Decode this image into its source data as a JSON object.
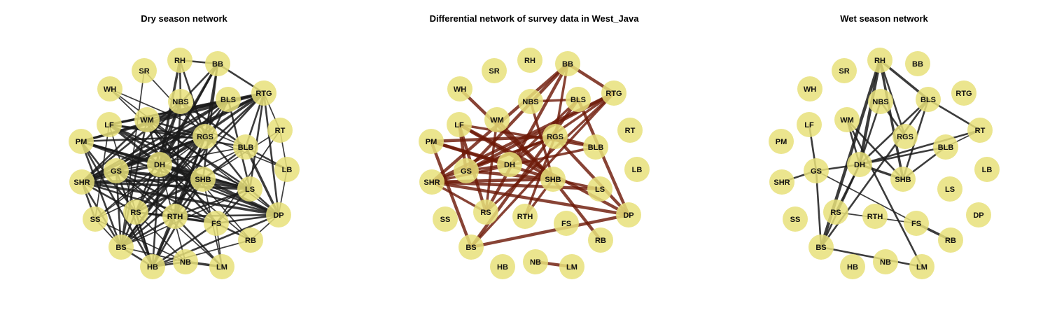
{
  "panels": [
    {
      "title": "Dry season network",
      "edge_color": "#1a1a1a",
      "edge_opacity": 0.85,
      "edges": [
        [
          "RH",
          "BB",
          2
        ],
        [
          "RH",
          "NBS",
          2
        ],
        [
          "RH",
          "DH",
          3
        ],
        [
          "RH",
          "RGS",
          2
        ],
        [
          "BB",
          "RTG",
          2
        ],
        [
          "BB",
          "DH",
          3
        ],
        [
          "BB",
          "RS",
          2
        ],
        [
          "BB",
          "SHB",
          2
        ],
        [
          "BB",
          "GS",
          2
        ],
        [
          "BB",
          "RGS",
          2
        ],
        [
          "WH",
          "SHB",
          1
        ],
        [
          "WH",
          "DP",
          1
        ],
        [
          "SR",
          "RGS",
          1
        ],
        [
          "RTG",
          "LF",
          3
        ],
        [
          "RTG",
          "PM",
          3
        ],
        [
          "RTG",
          "GS",
          3
        ],
        [
          "RTG",
          "SHR",
          3
        ],
        [
          "RTG",
          "DH",
          3
        ],
        [
          "RTG",
          "BLB",
          2
        ],
        [
          "RTG",
          "RT",
          1
        ],
        [
          "RTG",
          "LS",
          2
        ],
        [
          "RTG",
          "RS",
          2
        ],
        [
          "RTG",
          "BS",
          2
        ],
        [
          "RTG",
          "DP",
          2
        ],
        [
          "RTG",
          "WM",
          2
        ],
        [
          "NBS",
          "SHR",
          2
        ],
        [
          "NBS",
          "DH",
          2
        ],
        [
          "NBS",
          "RTH",
          2
        ],
        [
          "NBS",
          "RS",
          2
        ],
        [
          "NBS",
          "LS",
          2
        ],
        [
          "NBS",
          "BLB",
          2
        ],
        [
          "BLS",
          "LF",
          2
        ],
        [
          "BLS",
          "PM",
          2
        ],
        [
          "BLS",
          "GS",
          2
        ],
        [
          "BLS",
          "SHR",
          2
        ],
        [
          "BLS",
          "LS",
          2
        ],
        [
          "BLS",
          "DH",
          2
        ],
        [
          "BLS",
          "BS",
          2
        ],
        [
          "BLS",
          "RTH",
          2
        ],
        [
          "LF",
          "SHB",
          3
        ],
        [
          "LF",
          "DH",
          3
        ],
        [
          "LF",
          "RGS",
          2
        ],
        [
          "LF",
          "LS",
          2
        ],
        [
          "LF",
          "BLB",
          2
        ],
        [
          "LF",
          "SS",
          1
        ],
        [
          "LF",
          "HB",
          1
        ],
        [
          "WM",
          "LS",
          2
        ],
        [
          "WM",
          "DH",
          2
        ],
        [
          "WM",
          "RGS",
          2
        ],
        [
          "WM",
          "SHR",
          2
        ],
        [
          "WM",
          "RB",
          1
        ],
        [
          "WM",
          "FS",
          2
        ],
        [
          "WM",
          "BS",
          2
        ],
        [
          "PM",
          "RGS",
          2
        ],
        [
          "PM",
          "SHB",
          2
        ],
        [
          "PM",
          "LS",
          2
        ],
        [
          "PM",
          "DP",
          2
        ],
        [
          "PM",
          "HB",
          2
        ],
        [
          "PM",
          "RS",
          2
        ],
        [
          "PM",
          "BS",
          2
        ],
        [
          "PM",
          "DH",
          2
        ],
        [
          "RGS",
          "GS",
          3
        ],
        [
          "RGS",
          "SHR",
          3
        ],
        [
          "RGS",
          "DH",
          2
        ],
        [
          "RGS",
          "HB",
          3
        ],
        [
          "RGS",
          "BS",
          2
        ],
        [
          "RGS",
          "RS",
          2
        ],
        [
          "RGS",
          "RTH",
          2
        ],
        [
          "RGS",
          "LB",
          1
        ],
        [
          "RGS",
          "SS",
          1
        ],
        [
          "BLB",
          "SHB",
          2
        ],
        [
          "BLB",
          "DP",
          3
        ],
        [
          "BLB",
          "LB",
          2
        ],
        [
          "BLB",
          "GS",
          1
        ],
        [
          "BLB",
          "SS",
          1
        ],
        [
          "RT",
          "LB",
          1
        ],
        [
          "RT",
          "SHB",
          1
        ],
        [
          "RT",
          "FS",
          1
        ],
        [
          "DH",
          "SHB",
          3
        ],
        [
          "DH",
          "SHR",
          3
        ],
        [
          "DH",
          "LS",
          2
        ],
        [
          "DH",
          "DP",
          2
        ],
        [
          "DH",
          "RB",
          1
        ],
        [
          "DH",
          "SS",
          1
        ],
        [
          "DH",
          "HB",
          2
        ],
        [
          "DH",
          "NB",
          1
        ],
        [
          "DH",
          "FS",
          2
        ],
        [
          "GS",
          "SHB",
          3
        ],
        [
          "GS",
          "SHR",
          2
        ],
        [
          "GS",
          "RTH",
          2
        ],
        [
          "GS",
          "LS",
          2
        ],
        [
          "GS",
          "FS",
          2
        ],
        [
          "GS",
          "DP",
          2
        ],
        [
          "GS",
          "BS",
          2
        ],
        [
          "GS",
          "HB",
          2
        ],
        [
          "GS",
          "LM",
          1
        ],
        [
          "SHR",
          "SHB",
          3
        ],
        [
          "SHR",
          "LS",
          3
        ],
        [
          "SHR",
          "DP",
          3
        ],
        [
          "SHR",
          "RS",
          2
        ],
        [
          "SHR",
          "BS",
          2
        ],
        [
          "SHR",
          "SS",
          2
        ],
        [
          "SHR",
          "FS",
          2
        ],
        [
          "SHB",
          "LS",
          3
        ],
        [
          "SHB",
          "RS",
          3
        ],
        [
          "SHB",
          "RTH",
          2
        ],
        [
          "SHB",
          "DP",
          3
        ],
        [
          "SHB",
          "HB",
          2
        ],
        [
          "SHB",
          "BS",
          2
        ],
        [
          "SHB",
          "LM",
          1
        ],
        [
          "LS",
          "DP",
          2
        ],
        [
          "LS",
          "RTH",
          2
        ],
        [
          "LS",
          "FS",
          2
        ],
        [
          "LS",
          "BS",
          1
        ],
        [
          "LB",
          "DP",
          1
        ],
        [
          "RS",
          "RTH",
          2
        ],
        [
          "RS",
          "HB",
          2
        ],
        [
          "RS",
          "NB",
          1
        ],
        [
          "RS",
          "FS",
          2
        ],
        [
          "RS",
          "BS",
          2
        ],
        [
          "RTH",
          "FS",
          2
        ],
        [
          "RTH",
          "DP",
          2
        ],
        [
          "RTH",
          "HB",
          2
        ],
        [
          "RTH",
          "LM",
          2
        ],
        [
          "RTH",
          "BS",
          2
        ],
        [
          "FS",
          "DP",
          2
        ],
        [
          "FS",
          "RB",
          2
        ],
        [
          "FS",
          "HB",
          2
        ],
        [
          "FS",
          "LM",
          1
        ],
        [
          "DP",
          "HB",
          2
        ],
        [
          "DP",
          "RB",
          1
        ],
        [
          "SS",
          "BS",
          1
        ],
        [
          "SS",
          "NB",
          1
        ],
        [
          "BS",
          "HB",
          2
        ],
        [
          "BS",
          "NB",
          1
        ],
        [
          "HB",
          "NB",
          2
        ],
        [
          "NB",
          "LM",
          3
        ],
        [
          "RB",
          "HB",
          1
        ],
        [
          "WH",
          "BLB",
          1
        ],
        [
          "SR",
          "BS",
          1
        ]
      ]
    },
    {
      "title": "Differential network of survey data in West_Java",
      "edge_color": "#6e1a08",
      "edge_opacity": 0.82,
      "edges": [
        [
          "BB",
          "GS",
          4
        ],
        [
          "BB",
          "SHR",
          4
        ],
        [
          "BB",
          "RTG",
          4
        ],
        [
          "BB",
          "RGS",
          3
        ],
        [
          "BB",
          "RS",
          4
        ],
        [
          "WH",
          "SHB",
          4
        ],
        [
          "RTG",
          "GS",
          4
        ],
        [
          "RTG",
          "SHR",
          4
        ],
        [
          "RTG",
          "DH",
          3
        ],
        [
          "RTG",
          "RS",
          3
        ],
        [
          "LF",
          "RS",
          4
        ],
        [
          "LF",
          "SHB",
          4
        ],
        [
          "LF",
          "GS",
          4
        ],
        [
          "LF",
          "DP",
          4
        ],
        [
          "LF",
          "BLB",
          3
        ],
        [
          "WM",
          "SHB",
          4
        ],
        [
          "WM",
          "RS",
          3
        ],
        [
          "PM",
          "RGS",
          4
        ],
        [
          "PM",
          "SHB",
          4
        ],
        [
          "PM",
          "DH",
          4
        ],
        [
          "PM",
          "BS",
          4
        ],
        [
          "RGS",
          "DP",
          4
        ],
        [
          "RGS",
          "GS",
          3
        ],
        [
          "RGS",
          "SHR",
          3
        ],
        [
          "NBS",
          "SHB",
          3
        ],
        [
          "NBS",
          "BLS",
          3
        ],
        [
          "BLS",
          "BS",
          4
        ],
        [
          "BLS",
          "DH",
          3
        ],
        [
          "BLS",
          "DP",
          4
        ],
        [
          "SHR",
          "SHB",
          4
        ],
        [
          "SHR",
          "LS",
          4
        ],
        [
          "SHR",
          "DP",
          4
        ],
        [
          "SHR",
          "RS",
          3
        ],
        [
          "GS",
          "DH",
          3
        ],
        [
          "GS",
          "SHB",
          4
        ],
        [
          "SHB",
          "RB",
          4
        ],
        [
          "SHB",
          "LS",
          3
        ],
        [
          "BS",
          "DP",
          4
        ],
        [
          "BLB",
          "RGS",
          3
        ],
        [
          "NB",
          "LM",
          4
        ],
        [
          "RTH",
          "RGS",
          3
        ],
        [
          "RTH",
          "SHB",
          3
        ],
        [
          "BLB",
          "SHR",
          3
        ],
        [
          "RTG",
          "BS",
          3
        ]
      ]
    },
    {
      "title": "Wet season network",
      "edge_color": "#1a1a1a",
      "edge_opacity": 0.85,
      "edges": [
        [
          "RH",
          "BLS",
          3
        ],
        [
          "RH",
          "SHB",
          3
        ],
        [
          "RH",
          "DH",
          4
        ],
        [
          "RH",
          "BS",
          4
        ],
        [
          "RH",
          "RGS",
          2
        ],
        [
          "BLS",
          "DH",
          2
        ],
        [
          "BLS",
          "SHB",
          2
        ],
        [
          "BLS",
          "RT",
          2
        ],
        [
          "BLS",
          "BS",
          2
        ],
        [
          "WM",
          "DH",
          2
        ],
        [
          "WM",
          "LM",
          2
        ],
        [
          "WM",
          "SHB",
          2
        ],
        [
          "DH",
          "SHB",
          3
        ],
        [
          "DH",
          "RT",
          2
        ],
        [
          "DH",
          "BLB",
          2
        ],
        [
          "DH",
          "BS",
          2
        ],
        [
          "DH",
          "GS",
          2
        ],
        [
          "DH",
          "RS",
          2
        ],
        [
          "LF",
          "GS",
          2
        ],
        [
          "GS",
          "SHR",
          2
        ],
        [
          "GS",
          "BS",
          2
        ],
        [
          "GS",
          "FS",
          1
        ],
        [
          "BLB",
          "SHB",
          2
        ],
        [
          "FS",
          "RB",
          3
        ],
        [
          "BS",
          "LM",
          2
        ],
        [
          "NBS",
          "RGS",
          2
        ],
        [
          "RS",
          "FS",
          1
        ],
        [
          "NBS",
          "DH",
          2
        ],
        [
          "BLB",
          "RT",
          1
        ]
      ]
    }
  ],
  "nodes": [
    {
      "id": "SR",
      "label": "SR"
    },
    {
      "id": "RH",
      "label": "RH"
    },
    {
      "id": "BB",
      "label": "BB"
    },
    {
      "id": "WH",
      "label": "WH"
    },
    {
      "id": "NBS",
      "label": "NBS"
    },
    {
      "id": "BLS",
      "label": "BLS"
    },
    {
      "id": "RTG",
      "label": "RTG"
    },
    {
      "id": "LF",
      "label": "LF"
    },
    {
      "id": "WM",
      "label": "WM"
    },
    {
      "id": "RT",
      "label": "RT"
    },
    {
      "id": "PM",
      "label": "PM"
    },
    {
      "id": "RGS",
      "label": "RGS"
    },
    {
      "id": "BLB",
      "label": "BLB"
    },
    {
      "id": "GS",
      "label": "GS"
    },
    {
      "id": "DH",
      "label": "DH"
    },
    {
      "id": "LB",
      "label": "LB"
    },
    {
      "id": "SHR",
      "label": "SHR"
    },
    {
      "id": "SHB",
      "label": "SHB"
    },
    {
      "id": "LS",
      "label": "LS"
    },
    {
      "id": "RS",
      "label": "RS"
    },
    {
      "id": "RTH",
      "label": "RTH"
    },
    {
      "id": "FS",
      "label": "FS"
    },
    {
      "id": "DP",
      "label": "DP"
    },
    {
      "id": "SS",
      "label": "SS"
    },
    {
      "id": "RB",
      "label": "RB"
    },
    {
      "id": "BS",
      "label": "BS"
    },
    {
      "id": "HB",
      "label": "HB"
    },
    {
      "id": "NB",
      "label": "NB"
    },
    {
      "id": "LM",
      "label": "LM"
    }
  ],
  "node_color": "#e8e07a",
  "node_opacity": 0.85
}
